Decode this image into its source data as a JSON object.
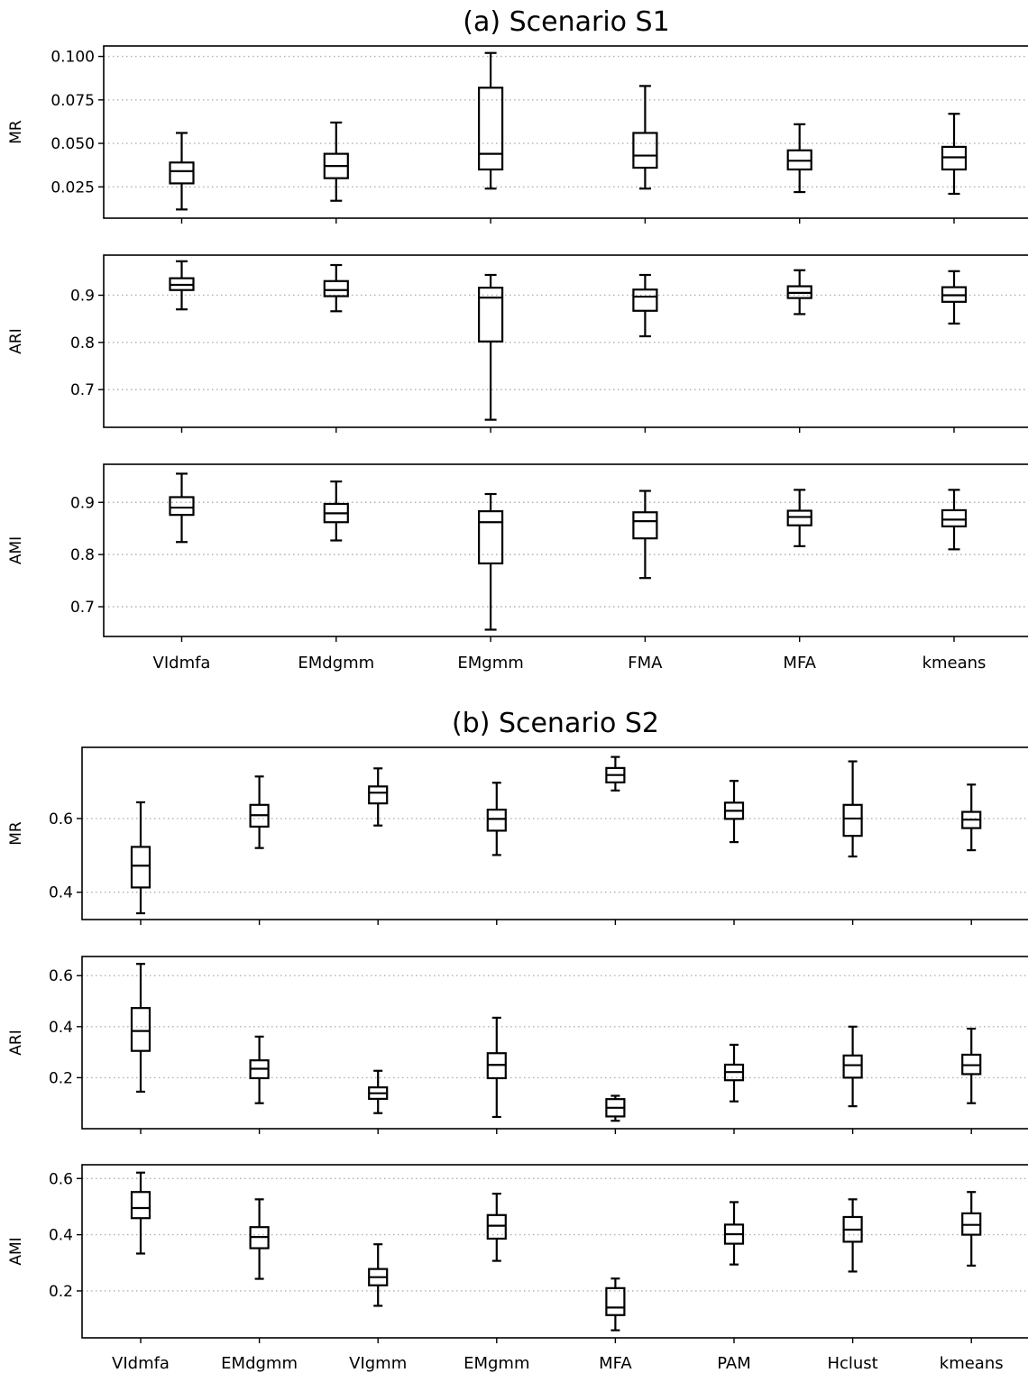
{
  "figure": {
    "sections": [
      {
        "title": "(a) Scenario S1",
        "categories": [
          "VIdmfa",
          "EMdgmm",
          "EMgmm",
          "FMA",
          "MFA",
          "kmeans"
        ],
        "panels": [
          {
            "chart_data": {
              "type": "boxplot",
              "ylabel": "MR",
              "ylim": [
                0.007,
                0.106
              ],
              "yticks": [
                0.025,
                0.05,
                0.075,
                0.1
              ],
              "ytick_labels": [
                "0.025",
                "0.050",
                "0.075",
                "0.100"
              ],
              "grid": "y-dotted",
              "boxes": [
                {
                  "category": "VIdmfa",
                  "whisker_low": 0.012,
                  "q1": 0.027,
                  "median": 0.034,
                  "q3": 0.039,
                  "whisker_high": 0.056
                },
                {
                  "category": "EMdgmm",
                  "whisker_low": 0.017,
                  "q1": 0.03,
                  "median": 0.037,
                  "q3": 0.044,
                  "whisker_high": 0.062
                },
                {
                  "category": "EMgmm",
                  "whisker_low": 0.024,
                  "q1": 0.035,
                  "median": 0.044,
                  "q3": 0.082,
                  "whisker_high": 0.102
                },
                {
                  "category": "FMA",
                  "whisker_low": 0.024,
                  "q1": 0.036,
                  "median": 0.043,
                  "q3": 0.056,
                  "whisker_high": 0.083
                },
                {
                  "category": "MFA",
                  "whisker_low": 0.022,
                  "q1": 0.035,
                  "median": 0.04,
                  "q3": 0.046,
                  "whisker_high": 0.061
                },
                {
                  "category": "kmeans",
                  "whisker_low": 0.021,
                  "q1": 0.035,
                  "median": 0.042,
                  "q3": 0.048,
                  "whisker_high": 0.067
                }
              ]
            }
          },
          {
            "chart_data": {
              "type": "boxplot",
              "ylabel": "ARI",
              "ylim": [
                0.62,
                0.985
              ],
              "yticks": [
                0.7,
                0.8,
                0.9
              ],
              "ytick_labels": [
                "0.7",
                "0.8",
                "0.9"
              ],
              "grid": "y-dotted",
              "boxes": [
                {
                  "category": "VIdmfa",
                  "whisker_low": 0.87,
                  "q1": 0.911,
                  "median": 0.922,
                  "q3": 0.936,
                  "whisker_high": 0.972
                },
                {
                  "category": "EMdgmm",
                  "whisker_low": 0.866,
                  "q1": 0.898,
                  "median": 0.911,
                  "q3": 0.93,
                  "whisker_high": 0.964
                },
                {
                  "category": "EMgmm",
                  "whisker_low": 0.636,
                  "q1": 0.802,
                  "median": 0.895,
                  "q3": 0.916,
                  "whisker_high": 0.943
                },
                {
                  "category": "FMA",
                  "whisker_low": 0.813,
                  "q1": 0.867,
                  "median": 0.897,
                  "q3": 0.912,
                  "whisker_high": 0.943
                },
                {
                  "category": "MFA",
                  "whisker_low": 0.86,
                  "q1": 0.894,
                  "median": 0.905,
                  "q3": 0.919,
                  "whisker_high": 0.953
                },
                {
                  "category": "kmeans",
                  "whisker_low": 0.84,
                  "q1": 0.886,
                  "median": 0.9,
                  "q3": 0.917,
                  "whisker_high": 0.951
                }
              ]
            }
          },
          {
            "chart_data": {
              "type": "boxplot",
              "ylabel": "AMI",
              "ylim": [
                0.643,
                0.973
              ],
              "yticks": [
                0.7,
                0.8,
                0.9
              ],
              "ytick_labels": [
                "0.7",
                "0.8",
                "0.9"
              ],
              "grid": "y-dotted",
              "boxes": [
                {
                  "category": "VIdmfa",
                  "whisker_low": 0.824,
                  "q1": 0.876,
                  "median": 0.89,
                  "q3": 0.91,
                  "whisker_high": 0.955
                },
                {
                  "category": "EMdgmm",
                  "whisker_low": 0.827,
                  "q1": 0.862,
                  "median": 0.879,
                  "q3": 0.897,
                  "whisker_high": 0.94
                },
                {
                  "category": "EMgmm",
                  "whisker_low": 0.656,
                  "q1": 0.783,
                  "median": 0.862,
                  "q3": 0.883,
                  "whisker_high": 0.916
                },
                {
                  "category": "FMA",
                  "whisker_low": 0.755,
                  "q1": 0.831,
                  "median": 0.864,
                  "q3": 0.881,
                  "whisker_high": 0.922
                },
                {
                  "category": "MFA",
                  "whisker_low": 0.816,
                  "q1": 0.856,
                  "median": 0.872,
                  "q3": 0.884,
                  "whisker_high": 0.924
                },
                {
                  "category": "kmeans",
                  "whisker_low": 0.81,
                  "q1": 0.854,
                  "median": 0.867,
                  "q3": 0.885,
                  "whisker_high": 0.924
                }
              ]
            }
          }
        ]
      },
      {
        "title": "(b) Scenario S2",
        "categories": [
          "VIdmfa",
          "EMdgmm",
          "VIgmm",
          "EMgmm",
          "MFA",
          "PAM",
          "Hclust",
          "kmeans"
        ],
        "panels": [
          {
            "chart_data": {
              "type": "boxplot",
              "ylabel": "MR",
              "ylim": [
                0.326,
                0.793
              ],
              "yticks": [
                0.4,
                0.6
              ],
              "ytick_labels": [
                "0.4",
                "0.6"
              ],
              "grid": "y-dotted",
              "boxes": [
                {
                  "category": "VIdmfa",
                  "whisker_low": 0.343,
                  "q1": 0.413,
                  "median": 0.472,
                  "q3": 0.523,
                  "whisker_high": 0.644
                },
                {
                  "category": "EMdgmm",
                  "whisker_low": 0.52,
                  "q1": 0.578,
                  "median": 0.609,
                  "q3": 0.637,
                  "whisker_high": 0.714
                },
                {
                  "category": "VIgmm",
                  "whisker_low": 0.581,
                  "q1": 0.641,
                  "median": 0.67,
                  "q3": 0.687,
                  "whisker_high": 0.736
                },
                {
                  "category": "EMgmm",
                  "whisker_low": 0.501,
                  "q1": 0.567,
                  "median": 0.599,
                  "q3": 0.624,
                  "whisker_high": 0.697
                },
                {
                  "category": "MFA",
                  "whisker_low": 0.676,
                  "q1": 0.698,
                  "median": 0.718,
                  "q3": 0.737,
                  "whisker_high": 0.767
                },
                {
                  "category": "PAM",
                  "whisker_low": 0.536,
                  "q1": 0.599,
                  "median": 0.621,
                  "q3": 0.643,
                  "whisker_high": 0.702
                },
                {
                  "category": "Hclust",
                  "whisker_low": 0.497,
                  "q1": 0.553,
                  "median": 0.6,
                  "q3": 0.637,
                  "whisker_high": 0.755
                },
                {
                  "category": "kmeans",
                  "whisker_low": 0.514,
                  "q1": 0.574,
                  "median": 0.597,
                  "q3": 0.618,
                  "whisker_high": 0.692
                }
              ]
            }
          },
          {
            "chart_data": {
              "type": "boxplot",
              "ylabel": "ARI",
              "ylim": [
                0.0,
                0.675
              ],
              "yticks": [
                0.2,
                0.4,
                0.6
              ],
              "ytick_labels": [
                "0.2",
                "0.4",
                "0.6"
              ],
              "grid": "y-dotted",
              "boxes": [
                {
                  "category": "VIdmfa",
                  "whisker_low": 0.145,
                  "q1": 0.305,
                  "median": 0.383,
                  "q3": 0.473,
                  "whisker_high": 0.646
                },
                {
                  "category": "EMdgmm",
                  "whisker_low": 0.1,
                  "q1": 0.198,
                  "median": 0.235,
                  "q3": 0.268,
                  "whisker_high": 0.361
                },
                {
                  "category": "VIgmm",
                  "whisker_low": 0.061,
                  "q1": 0.117,
                  "median": 0.139,
                  "q3": 0.162,
                  "whisker_high": 0.227
                },
                {
                  "category": "EMgmm",
                  "whisker_low": 0.046,
                  "q1": 0.198,
                  "median": 0.25,
                  "q3": 0.296,
                  "whisker_high": 0.435
                },
                {
                  "category": "MFA",
                  "whisker_low": 0.031,
                  "q1": 0.048,
                  "median": 0.082,
                  "q3": 0.116,
                  "whisker_high": 0.129
                },
                {
                  "category": "PAM",
                  "whisker_low": 0.107,
                  "q1": 0.19,
                  "median": 0.222,
                  "q3": 0.251,
                  "whisker_high": 0.329
                },
                {
                  "category": "Hclust",
                  "whisker_low": 0.088,
                  "q1": 0.2,
                  "median": 0.249,
                  "q3": 0.287,
                  "whisker_high": 0.4
                },
                {
                  "category": "kmeans",
                  "whisker_low": 0.1,
                  "q1": 0.214,
                  "median": 0.249,
                  "q3": 0.29,
                  "whisker_high": 0.392
                }
              ]
            }
          },
          {
            "chart_data": {
              "type": "boxplot",
              "ylabel": "AMI",
              "ylim": [
                0.033,
                0.649
              ],
              "yticks": [
                0.2,
                0.4,
                0.6
              ],
              "ytick_labels": [
                "0.2",
                "0.4",
                "0.6"
              ],
              "grid": "y-dotted",
              "boxes": [
                {
                  "category": "VIdmfa",
                  "whisker_low": 0.333,
                  "q1": 0.459,
                  "median": 0.495,
                  "q3": 0.552,
                  "whisker_high": 0.621
                },
                {
                  "category": "EMdgmm",
                  "whisker_low": 0.243,
                  "q1": 0.352,
                  "median": 0.392,
                  "q3": 0.427,
                  "whisker_high": 0.526
                },
                {
                  "category": "VIgmm",
                  "whisker_low": 0.147,
                  "q1": 0.22,
                  "median": 0.249,
                  "q3": 0.278,
                  "whisker_high": 0.366
                },
                {
                  "category": "EMgmm",
                  "whisker_low": 0.307,
                  "q1": 0.386,
                  "median": 0.432,
                  "q3": 0.47,
                  "whisker_high": 0.546
                },
                {
                  "category": "MFA",
                  "whisker_low": 0.06,
                  "q1": 0.114,
                  "median": 0.141,
                  "q3": 0.21,
                  "whisker_high": 0.244
                },
                {
                  "category": "PAM",
                  "whisker_low": 0.294,
                  "q1": 0.368,
                  "median": 0.402,
                  "q3": 0.436,
                  "whisker_high": 0.516
                },
                {
                  "category": "Hclust",
                  "whisker_low": 0.269,
                  "q1": 0.375,
                  "median": 0.418,
                  "q3": 0.463,
                  "whisker_high": 0.526
                },
                {
                  "category": "kmeans",
                  "whisker_low": 0.29,
                  "q1": 0.4,
                  "median": 0.435,
                  "q3": 0.476,
                  "whisker_high": 0.552
                }
              ]
            }
          }
        ]
      }
    ]
  }
}
